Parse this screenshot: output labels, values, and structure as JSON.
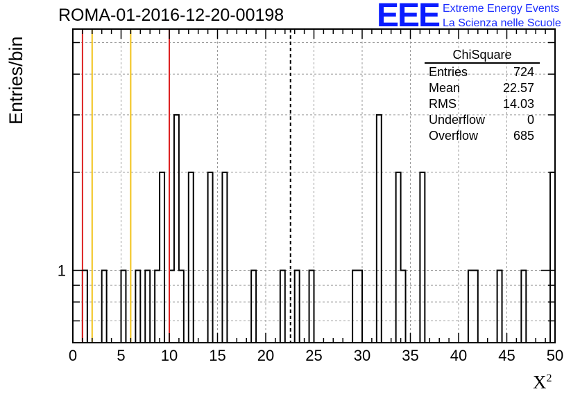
{
  "header": {
    "title": "ROMA-01-2016-12-20-00198",
    "logo_text": "EEE",
    "brand_line1": "Extreme Energy Events",
    "brand_line2": "La Scienza nelle Scuole"
  },
  "stats_box": {
    "title": "ChiSquare",
    "rows": [
      {
        "label": "Entries",
        "value": "724"
      },
      {
        "label": "Mean",
        "value": "22.57"
      },
      {
        "label": "RMS",
        "value": "14.03"
      },
      {
        "label": "Underflow",
        "value": "0"
      },
      {
        "label": "Overflow",
        "value": "685"
      }
    ]
  },
  "chart_data": {
    "type": "bar",
    "title": "ROMA-01-2016-12-20-00198",
    "xlabel": "X",
    "xlabel_superscript": "2",
    "ylabel": "Entries/bin",
    "xlim": [
      0,
      50
    ],
    "x_ticks": [
      0,
      5,
      10,
      15,
      20,
      25,
      30,
      35,
      40,
      45,
      50
    ],
    "y_scale": "log",
    "ylim": [
      0.6,
      5.5
    ],
    "y_ticks": [
      1
    ],
    "grid": true,
    "bin_width": 0.5,
    "bins": [
      {
        "x": 1.0,
        "count": 1
      },
      {
        "x": 3.0,
        "count": 1
      },
      {
        "x": 5.0,
        "count": 1
      },
      {
        "x": 6.5,
        "count": 1
      },
      {
        "x": 7.5,
        "count": 1
      },
      {
        "x": 8.5,
        "count": 1
      },
      {
        "x": 9.0,
        "count": 2
      },
      {
        "x": 10.0,
        "count": 1
      },
      {
        "x": 10.5,
        "count": 3
      },
      {
        "x": 11.0,
        "count": 1
      },
      {
        "x": 12.0,
        "count": 2
      },
      {
        "x": 14.0,
        "count": 2
      },
      {
        "x": 15.5,
        "count": 2
      },
      {
        "x": 18.5,
        "count": 1
      },
      {
        "x": 21.5,
        "count": 1
      },
      {
        "x": 23.0,
        "count": 1
      },
      {
        "x": 24.5,
        "count": 1
      },
      {
        "x": 29.0,
        "count": 1
      },
      {
        "x": 29.5,
        "count": 1
      },
      {
        "x": 31.5,
        "count": 3
      },
      {
        "x": 33.5,
        "count": 2
      },
      {
        "x": 34.0,
        "count": 1
      },
      {
        "x": 36.0,
        "count": 2
      },
      {
        "x": 41.0,
        "count": 1
      },
      {
        "x": 41.5,
        "count": 1
      },
      {
        "x": 44.0,
        "count": 1
      },
      {
        "x": 46.5,
        "count": 1
      },
      {
        "x": 49.5,
        "count": 2
      }
    ],
    "vertical_lines": [
      {
        "x": 1.0,
        "color": "#dd2222",
        "style": "solid"
      },
      {
        "x": 2.0,
        "color": "#f2c31a",
        "style": "solid"
      },
      {
        "x": 6.0,
        "color": "#f2c31a",
        "style": "solid"
      },
      {
        "x": 10.0,
        "color": "#dd2222",
        "style": "solid"
      },
      {
        "x": 22.57,
        "color": "#000000",
        "style": "dashed"
      }
    ]
  }
}
